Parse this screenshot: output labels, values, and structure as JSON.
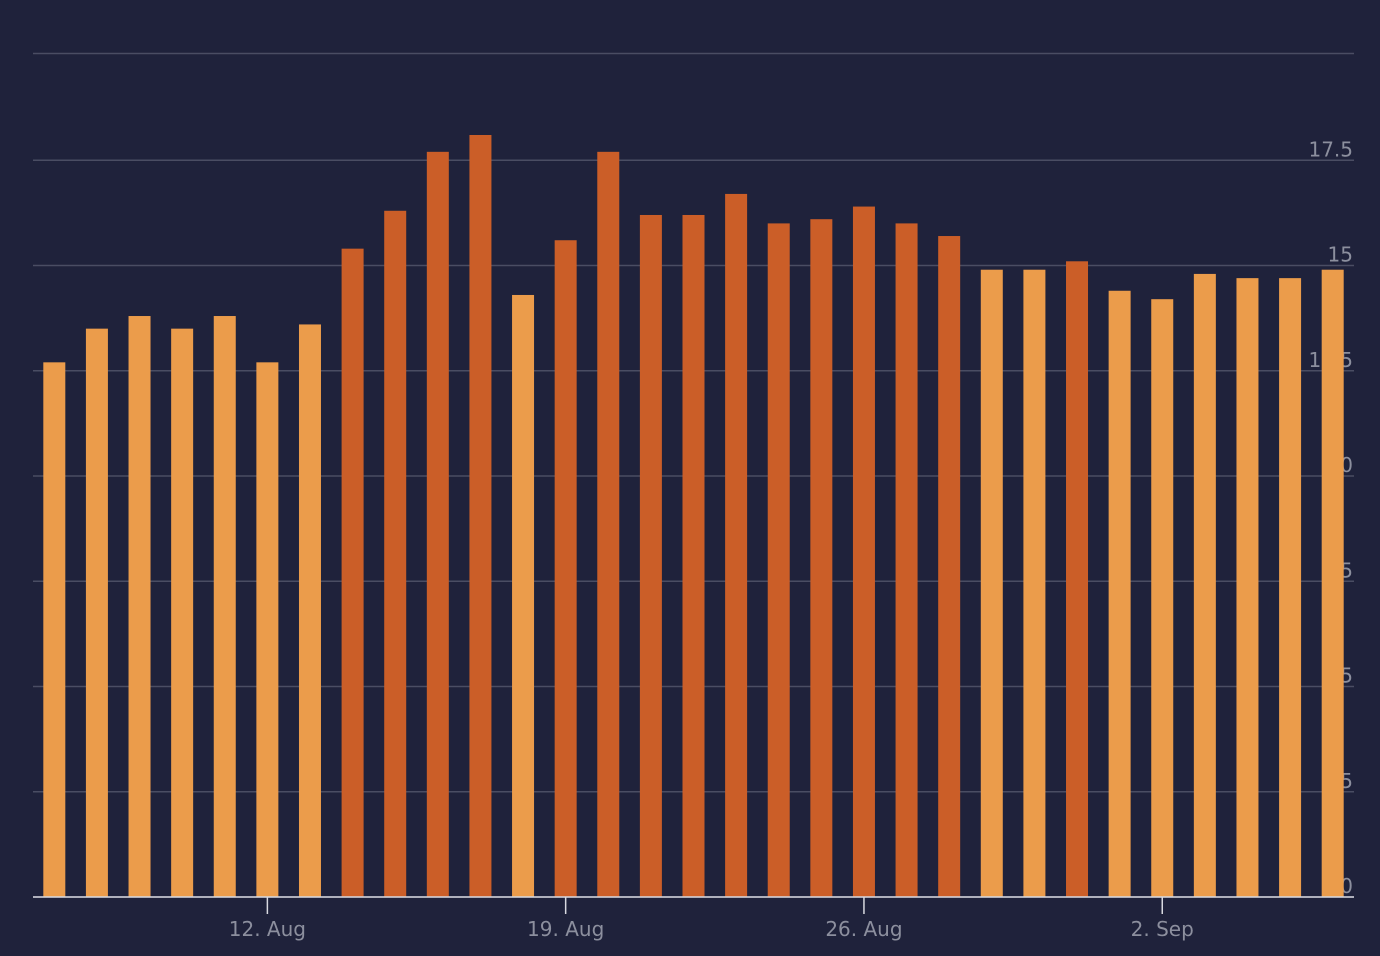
{
  "chart_data": {
    "type": "bar",
    "categories": [
      null,
      null,
      null,
      null,
      null,
      "12. Aug",
      null,
      null,
      null,
      null,
      null,
      null,
      "19. Aug",
      null,
      null,
      null,
      null,
      null,
      null,
      "26. Aug",
      null,
      null,
      null,
      null,
      null,
      null,
      "2. Sep",
      null,
      null,
      null,
      null
    ],
    "values": [
      12.7,
      13.5,
      13.8,
      13.5,
      13.8,
      12.7,
      13.6,
      15.4,
      16.3,
      17.7,
      18.1,
      14.3,
      15.6,
      17.7,
      16.2,
      16.2,
      16.7,
      16.0,
      16.1,
      16.4,
      16.0,
      15.7,
      14.9,
      14.9,
      15.1,
      14.4,
      14.2,
      14.8,
      14.7,
      14.7,
      14.9
    ],
    "colors": [
      "#eb9c4b",
      "#eb9c4b",
      "#eb9c4b",
      "#eb9c4b",
      "#eb9c4b",
      "#eb9c4b",
      "#eb9c4b",
      "#cb5e28",
      "#cb5e28",
      "#cb5e28",
      "#cb5e28",
      "#eb9c4b",
      "#cb5e28",
      "#cb5e28",
      "#cb5e28",
      "#cb5e28",
      "#cb5e28",
      "#cb5e28",
      "#cb5e28",
      "#cb5e28",
      "#cb5e28",
      "#cb5e28",
      "#eb9c4b",
      "#eb9c4b",
      "#cb5e28",
      "#eb9c4b",
      "#eb9c4b",
      "#eb9c4b",
      "#eb9c4b",
      "#eb9c4b",
      "#eb9c4b"
    ],
    "ylim": [
      0,
      20
    ],
    "yticks": [
      0,
      2.5,
      5,
      7.5,
      10,
      12.5,
      15,
      17.5
    ],
    "grid": true
  }
}
